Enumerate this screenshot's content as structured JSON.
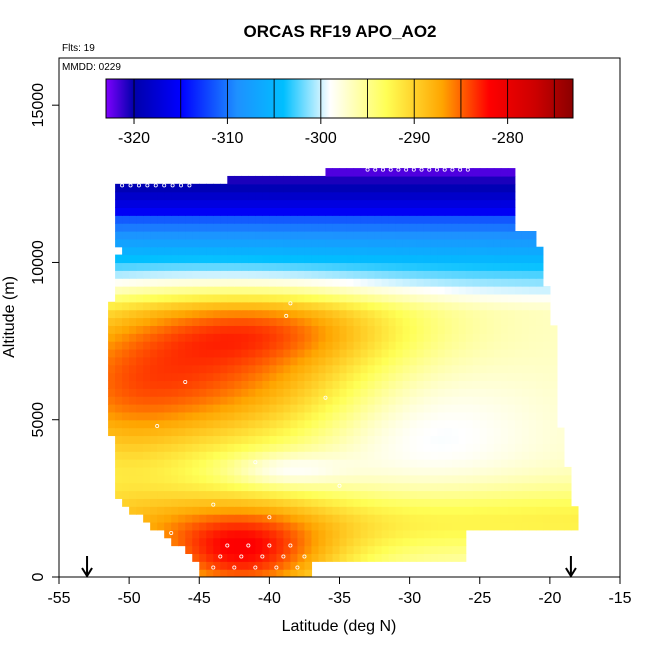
{
  "chart_data": {
    "type": "heatmap",
    "title": "ORCAS RF19 APO_AO2",
    "annotations": [
      "Flts: 19",
      "MMDD: 0229"
    ],
    "xlabel": "Latitude (deg N)",
    "ylabel": "Altitude (m)",
    "xlim": [
      -55,
      -15
    ],
    "ylim": [
      0,
      16500
    ],
    "xticks": [
      -55,
      -50,
      -45,
      -40,
      -35,
      -30,
      -25,
      -20,
      -15
    ],
    "yticks": [
      0,
      5000,
      10000,
      15000
    ],
    "colorbar": {
      "ticks": [
        -320,
        -310,
        -300,
        -290,
        -280
      ],
      "range": [
        -323,
        -273
      ],
      "colors": [
        "#7f00ff",
        "#0000aa",
        "#0000ff",
        "#1e90ff",
        "#00bfff",
        "#ffffff",
        "#ffff55",
        "#ffa500",
        "#ff0000",
        "#cc0000",
        "#8b0000"
      ]
    },
    "arrows_at_latitude": [
      -53,
      -18.5
    ],
    "field_description_values": {
      "top_layer_alt_m": 12500,
      "top_value": -318,
      "mid_max_alt_m": 6000,
      "mid_max_value": -282,
      "surface_value": -283
    }
  }
}
